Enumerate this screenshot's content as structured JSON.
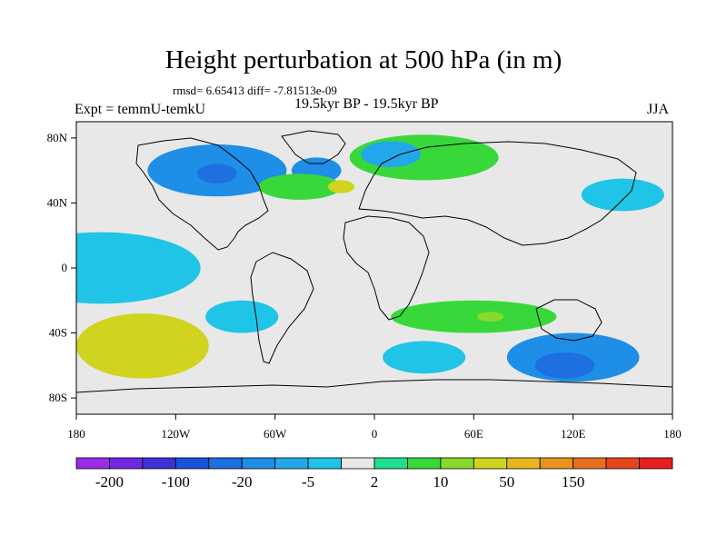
{
  "chart_data": {
    "type": "heatmap",
    "title": "Height perturbation at 500 hPa (in m)",
    "stats": "rmsd= 6.65413 diff= -7.81513e-09",
    "left_label": "Expt = temmU-temkU",
    "center_label": "19.5kyr BP - 19.5kyr BP",
    "right_label": "JJA",
    "units": "m",
    "x_ticks": [
      "180",
      "120W",
      "60W",
      "0",
      "60E",
      "120E",
      "180"
    ],
    "x_tick_values": [
      -180,
      -120,
      -60,
      0,
      60,
      120,
      180
    ],
    "y_ticks": [
      "80N",
      "40N",
      "0",
      "40S",
      "80S"
    ],
    "y_tick_values": [
      80,
      40,
      0,
      -40,
      -80
    ],
    "xlim": [
      -180,
      180
    ],
    "ylim": [
      -90,
      90
    ],
    "colorbar": {
      "labels": [
        "-200",
        "-100",
        "-20",
        "-5",
        "2",
        "10",
        "50",
        "150"
      ],
      "colors": [
        "#9a2ce8",
        "#7028e0",
        "#3c32d6",
        "#1a52dc",
        "#1e6fe0",
        "#1e8ee6",
        "#22a8ea",
        "#20c4e6",
        "#e8e8e8",
        "#1ee08e",
        "#38d83a",
        "#8ad82a",
        "#d0d41e",
        "#e6b81e",
        "#e6941e",
        "#e66e1e",
        "#e6461e",
        "#e61e1e"
      ]
    },
    "regions": [
      {
        "lon": -165,
        "lat": 0,
        "rx": 60,
        "ry": 22,
        "value": -3
      },
      {
        "lon": -95,
        "lat": 60,
        "rx": 42,
        "ry": 16,
        "value": -20
      },
      {
        "lon": -95,
        "lat": 58,
        "rx": 12,
        "ry": 6,
        "value": -50
      },
      {
        "lon": -35,
        "lat": 60,
        "rx": 15,
        "ry": 8,
        "value": -20
      },
      {
        "lon": -45,
        "lat": 50,
        "rx": 25,
        "ry": 8,
        "value": 8
      },
      {
        "lon": -20,
        "lat": 50,
        "rx": 8,
        "ry": 4,
        "value": 20
      },
      {
        "lon": 30,
        "lat": 68,
        "rx": 45,
        "ry": 14,
        "value": 7
      },
      {
        "lon": 10,
        "lat": 70,
        "rx": 18,
        "ry": 8,
        "value": -10
      },
      {
        "lon": 150,
        "lat": 45,
        "rx": 25,
        "ry": 10,
        "value": -5
      },
      {
        "lon": -140,
        "lat": -48,
        "rx": 40,
        "ry": 20,
        "value": 20
      },
      {
        "lon": -150,
        "lat": -52,
        "rx": 25,
        "ry": 12,
        "value": 40
      },
      {
        "lon": -80,
        "lat": -30,
        "rx": 22,
        "ry": 10,
        "value": -5
      },
      {
        "lon": 60,
        "lat": -30,
        "rx": 50,
        "ry": 10,
        "value": 6
      },
      {
        "lon": 70,
        "lat": -30,
        "rx": 8,
        "ry": 3,
        "value": 15
      },
      {
        "lon": 30,
        "lat": -55,
        "rx": 25,
        "ry": 10,
        "value": -5
      },
      {
        "lon": 120,
        "lat": -55,
        "rx": 40,
        "ry": 15,
        "value": -20
      },
      {
        "lon": 115,
        "lat": -60,
        "rx": 18,
        "ry": 8,
        "value": -50
      }
    ]
  }
}
